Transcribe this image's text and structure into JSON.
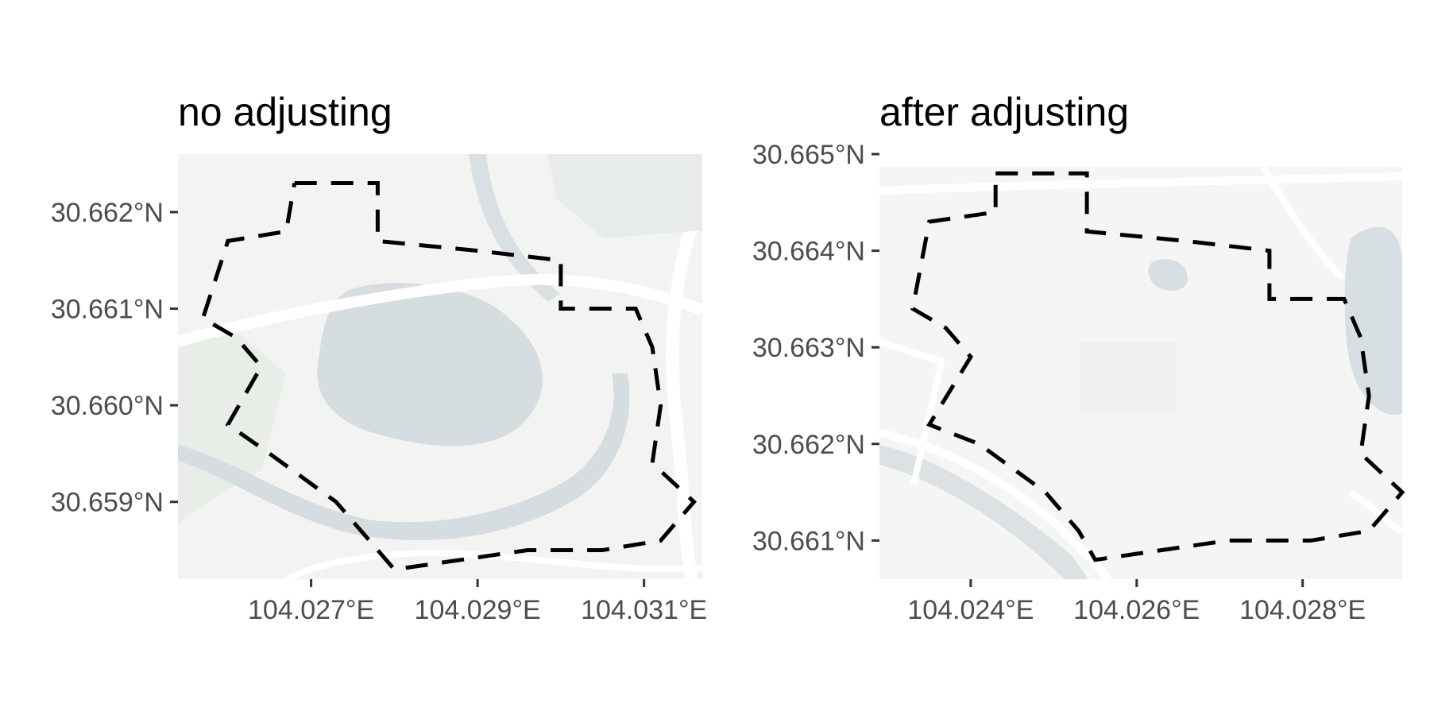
{
  "panels": [
    {
      "title": "no adjusting",
      "xlim": [
        104.0254,
        104.0317
      ],
      "ylim": [
        30.6582,
        30.6626
      ],
      "x_ticks": [
        {
          "value": 104.027,
          "label": "104.027°E"
        },
        {
          "value": 104.029,
          "label": "104.029°E"
        },
        {
          "value": 104.031,
          "label": "104.031°E"
        }
      ],
      "y_ticks": [
        {
          "value": 30.662,
          "label": "30.662°N"
        },
        {
          "value": 30.661,
          "label": "30.661°N"
        },
        {
          "value": 30.66,
          "label": "30.660°N"
        },
        {
          "value": 30.659,
          "label": "30.659°N"
        }
      ],
      "boundary": [
        [
          104.0268,
          30.6623
        ],
        [
          104.0278,
          30.6623
        ],
        [
          104.0278,
          30.6617
        ],
        [
          104.029,
          30.6616
        ],
        [
          104.03,
          30.6615
        ],
        [
          104.03,
          30.661
        ],
        [
          104.0309,
          30.661
        ],
        [
          104.0311,
          30.6606
        ],
        [
          104.0312,
          30.66
        ],
        [
          104.0311,
          30.6594
        ],
        [
          104.0316,
          30.659
        ],
        [
          104.0312,
          30.6586
        ],
        [
          104.0305,
          30.6585
        ],
        [
          104.0296,
          30.6585
        ],
        [
          104.0288,
          30.6584
        ],
        [
          104.028,
          30.6583
        ],
        [
          104.0277,
          30.6586
        ],
        [
          104.0273,
          30.659
        ],
        [
          104.0265,
          30.6595
        ],
        [
          104.026,
          30.6598
        ],
        [
          104.0264,
          30.6604
        ],
        [
          104.0261,
          30.6607
        ],
        [
          104.0257,
          30.6609
        ],
        [
          104.026,
          30.6617
        ],
        [
          104.0267,
          30.6618
        ],
        [
          104.0268,
          30.6623
        ]
      ],
      "map_colors": {
        "land": "#f3f4f2",
        "water": "#d6dde0",
        "road": "#ffffff",
        "green": "#e4ebe4"
      }
    },
    {
      "title": "after adjusting",
      "xlim": [
        104.0229,
        104.0292
      ],
      "ylim": [
        30.6606,
        30.665
      ],
      "x_ticks": [
        {
          "value": 104.024,
          "label": "104.024°E"
        },
        {
          "value": 104.026,
          "label": "104.026°E"
        },
        {
          "value": 104.028,
          "label": "104.028°E"
        }
      ],
      "y_ticks": [
        {
          "value": 30.665,
          "label": "30.665°N"
        },
        {
          "value": 30.664,
          "label": "30.664°N"
        },
        {
          "value": 30.663,
          "label": "30.663°N"
        },
        {
          "value": 30.662,
          "label": "30.662°N"
        },
        {
          "value": 30.661,
          "label": "30.661°N"
        }
      ],
      "boundary": [
        [
          104.0243,
          30.6648
        ],
        [
          104.0254,
          30.6648
        ],
        [
          104.0254,
          30.6642
        ],
        [
          104.0266,
          30.6641
        ],
        [
          104.0276,
          30.664
        ],
        [
          104.0276,
          30.6635
        ],
        [
          104.0285,
          30.6635
        ],
        [
          104.0287,
          30.6631
        ],
        [
          104.0288,
          30.6625
        ],
        [
          104.0287,
          30.6619
        ],
        [
          104.0292,
          30.6615
        ],
        [
          104.0288,
          30.6611
        ],
        [
          104.0281,
          30.661
        ],
        [
          104.0271,
          30.661
        ],
        [
          104.0263,
          30.6609
        ],
        [
          104.0255,
          30.6608
        ],
        [
          104.0253,
          30.6611
        ],
        [
          104.0249,
          30.6615
        ],
        [
          104.0241,
          30.662
        ],
        [
          104.0235,
          30.6622
        ],
        [
          104.024,
          30.6629
        ],
        [
          104.0237,
          30.6632
        ],
        [
          104.0233,
          30.6634
        ],
        [
          104.0235,
          30.6643
        ],
        [
          104.0243,
          30.6644
        ],
        [
          104.0243,
          30.6648
        ]
      ],
      "map_colors": {
        "land": "#f5f6f4",
        "water": "#d8dfe2",
        "road": "#ffffff",
        "green": "#e6ece6"
      }
    }
  ]
}
